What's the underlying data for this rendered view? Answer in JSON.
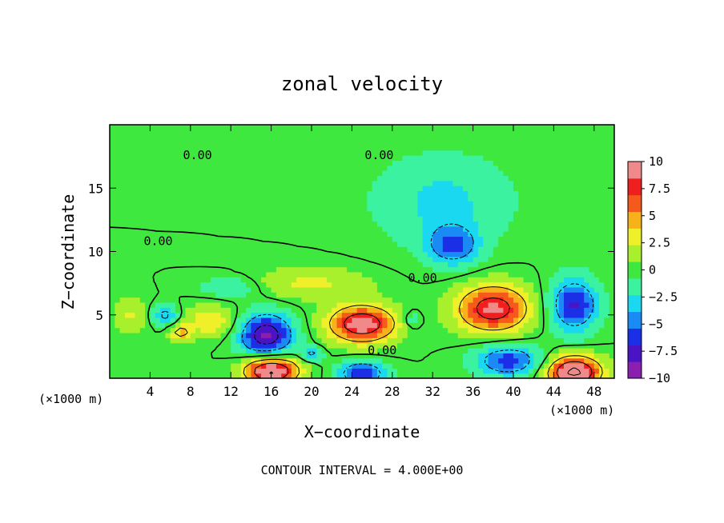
{
  "chart_data": {
    "type": "heatmap",
    "title": "zonal velocity",
    "xlabel": "X−coordinate",
    "ylabel": "Z−coordinate",
    "x_unit_left": "(×1000 m)",
    "x_unit_right": "(×1000 m)",
    "footer": "CONTOUR INTERVAL = 4.000E+00",
    "xlim": [
      0,
      50
    ],
    "ylim": [
      0,
      20
    ],
    "x_ticks": [
      4,
      8,
      12,
      16,
      20,
      24,
      28,
      32,
      36,
      40,
      44,
      48
    ],
    "y_ticks": [
      5,
      10,
      15
    ],
    "contour_interval": 4,
    "contour_labels": [
      {
        "text": "0.00",
        "x": 8.7,
        "y": 17.3
      },
      {
        "text": "0.00",
        "x": 26.7,
        "y": 17.3
      },
      {
        "text": "0.00",
        "x": 4.8,
        "y": 10.5
      },
      {
        "text": "0.00",
        "x": 31.0,
        "y": 7.6
      },
      {
        "text": "0.00",
        "x": 27.0,
        "y": 1.9
      }
    ],
    "colorbar": {
      "ticks": [
        10,
        7.5,
        5,
        2.5,
        0,
        -2.5,
        -5,
        -7.5,
        -10
      ],
      "tick_labels": [
        "10",
        "7.5",
        "5",
        "2.5",
        "0",
        "−2.5",
        "−5",
        "−7.5",
        "−10"
      ],
      "vmin": -10,
      "vmax": 10,
      "colors": [
        "#8a1fb0",
        "#4a14c4",
        "#1a2fe6",
        "#1a8af5",
        "#1ad8f0",
        "#3bf2a0",
        "#3fe83f",
        "#a8f02c",
        "#f0f02a",
        "#f7b21a",
        "#f55a1a",
        "#f01e1e",
        "#f08a8a"
      ]
    },
    "blobs": [
      {
        "x": 25,
        "y": 4.3,
        "rx": 3.2,
        "ry": 1.4,
        "v": 11
      },
      {
        "x": 38,
        "y": 5.5,
        "rx": 3.5,
        "ry": 1.8,
        "v": 10
      },
      {
        "x": 16,
        "y": 0.6,
        "rx": 2.6,
        "ry": 1.1,
        "v": 13
      },
      {
        "x": 46,
        "y": 0.5,
        "rx": 2.6,
        "ry": 1.2,
        "v": 13
      },
      {
        "x": 34,
        "y": 10.5,
        "rx": 2.5,
        "ry": 1.5,
        "v": -6
      },
      {
        "x": 46,
        "y": 5.8,
        "rx": 2.3,
        "ry": 2.0,
        "v": -8
      },
      {
        "x": 15.5,
        "y": 3.4,
        "rx": 2.6,
        "ry": 1.7,
        "v": -10
      },
      {
        "x": 25,
        "y": 0.4,
        "rx": 2.2,
        "ry": 0.9,
        "v": -8
      },
      {
        "x": 39.5,
        "y": 1.4,
        "rx": 3.2,
        "ry": 1.2,
        "v": -7
      },
      {
        "x": 5.5,
        "y": 5.0,
        "rx": 1.2,
        "ry": 0.7,
        "v": -5
      },
      {
        "x": 33,
        "y": 14.0,
        "rx": 6.5,
        "ry": 3.5,
        "v": -3
      },
      {
        "x": 20,
        "y": 7.5,
        "rx": 5.5,
        "ry": 1.2,
        "v": 3
      },
      {
        "x": 10,
        "y": 4.5,
        "rx": 2.5,
        "ry": 1.2,
        "v": 4
      },
      {
        "x": 7,
        "y": 3.6,
        "rx": 1.0,
        "ry": 0.6,
        "v": 5
      },
      {
        "x": 20,
        "y": 1.9,
        "rx": 1.0,
        "ry": 0.5,
        "v": -5
      },
      {
        "x": 30,
        "y": 4.6,
        "rx": 0.8,
        "ry": 0.6,
        "v": -3
      },
      {
        "x": 12,
        "y": 7.2,
        "rx": 3.0,
        "ry": 0.8,
        "v": -2.5
      },
      {
        "x": 2,
        "y": 5.0,
        "rx": 1.5,
        "ry": 1.2,
        "v": 3
      }
    ]
  }
}
